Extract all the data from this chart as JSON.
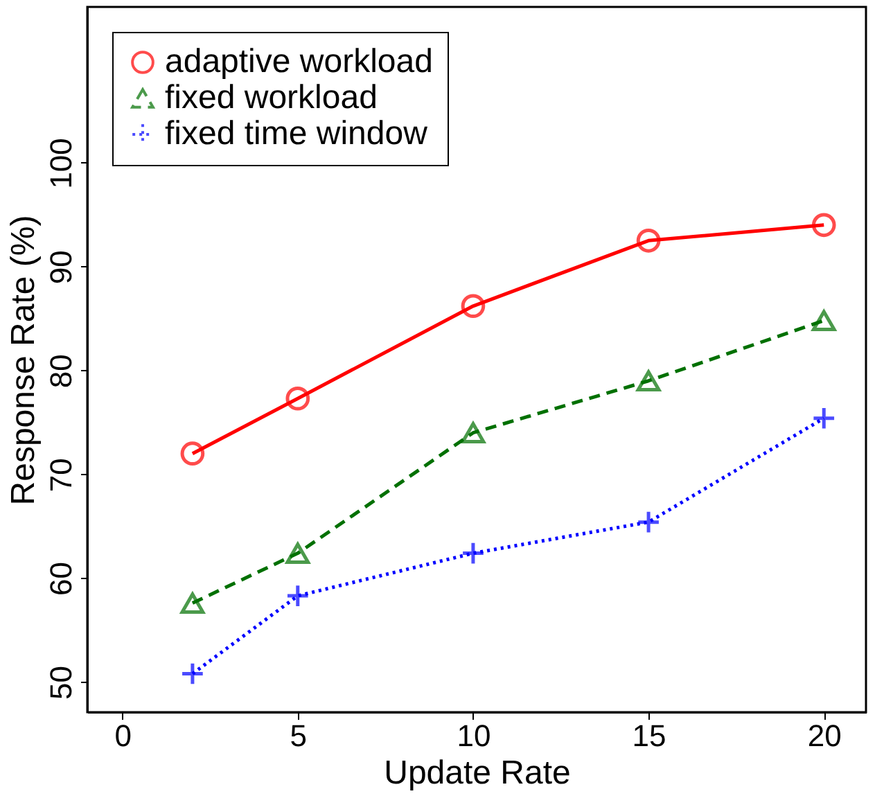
{
  "chart_data": {
    "type": "line",
    "xlabel": "Update Rate",
    "ylabel": "Response Rate (%)",
    "x": [
      2,
      5,
      10,
      15,
      20
    ],
    "series": [
      {
        "name": "adaptive workload",
        "color": "#ff0000",
        "values": [
          72,
          77.3,
          86.2,
          92.5,
          94
        ],
        "marker": "circle",
        "line_style": "solid"
      },
      {
        "name": "fixed workload",
        "color": "#007000",
        "values": [
          57.6,
          62.4,
          74,
          79,
          84.8
        ],
        "marker": "triangle",
        "line_style": "dashed"
      },
      {
        "name": "fixed time window",
        "color": "#0000ff",
        "values": [
          50.8,
          58.3,
          62.4,
          65.4,
          75.4
        ],
        "marker": "cross",
        "line_style": "dotted"
      }
    ],
    "xlim": [
      -1,
      21.2
    ],
    "xticks": [
      0,
      5,
      10,
      15,
      20
    ],
    "ylim": [
      47.1,
      115
    ],
    "yticks": [
      50,
      60,
      70,
      80,
      90,
      100
    ],
    "grid": false,
    "legend": "top left"
  }
}
